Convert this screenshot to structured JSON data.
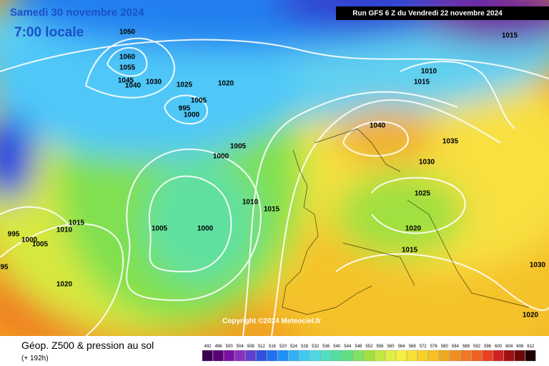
{
  "header": {
    "date": "Samedi 30 novembre 2024",
    "time": "7:00 locale",
    "run": "Run GFS 6 Z du Vendredi 22 novembre 2024"
  },
  "map": {
    "copyright": "Copyright ©2024 Meteociel.fr",
    "isobar_labels": [
      "1050",
      "1060",
      "1055",
      "1045",
      "1040",
      "1030",
      "1025",
      "1020",
      "1005",
      "995",
      "1000",
      "1005",
      "1000",
      "1010",
      "1015",
      "1005",
      "1000",
      "1015",
      "1010",
      "995",
      "1000",
      "1005",
      "95",
      "1020",
      "1015",
      "1010",
      "1015",
      "1040",
      "1035",
      "1030",
      "1025",
      "1020",
      "1015",
      "1030",
      "1020"
    ]
  },
  "footer": {
    "title": "Géop. Z500 & pression au sol",
    "lead": "(+ 192h)",
    "colorbar": [
      492,
      496,
      500,
      504,
      508,
      512,
      516,
      520,
      524,
      528,
      532,
      536,
      540,
      544,
      548,
      552,
      556,
      560,
      564,
      568,
      572,
      576,
      580,
      584,
      588,
      592,
      596,
      600,
      604,
      608,
      612
    ]
  }
}
